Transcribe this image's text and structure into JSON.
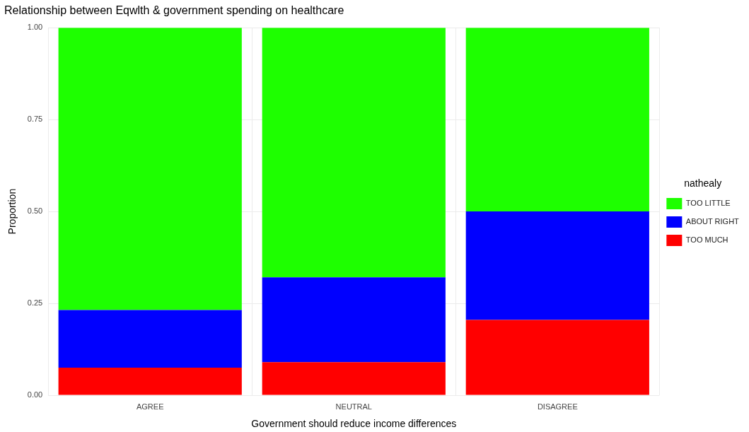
{
  "chart_data": {
    "type": "bar",
    "title": "Relationship between Eqwlth & government spending on healthcare",
    "xlabel": "Government should reduce income differences",
    "ylabel": "Proportion",
    "legend_title": "nathealy",
    "categories": [
      "AGREE",
      "NEUTRAL",
      "DISAGREE"
    ],
    "stacked": true,
    "series": [
      {
        "name": "TOO MUCH",
        "color": "#ff0000",
        "values": [
          0.075,
          0.09,
          0.205
        ]
      },
      {
        "name": "ABOUT RIGHT",
        "color": "#0000ff",
        "values": [
          0.157,
          0.231,
          0.295
        ]
      },
      {
        "name": "TOO LITTLE",
        "color": "#1eff00",
        "values": [
          0.768,
          0.679,
          0.5
        ]
      }
    ],
    "ylim": [
      0,
      1
    ],
    "yticks": [
      {
        "value": 0,
        "label": "0.00"
      },
      {
        "value": 0.25,
        "label": "0.25"
      },
      {
        "value": 0.5,
        "label": "0.50"
      },
      {
        "value": 0.75,
        "label": "0.75"
      },
      {
        "value": 1,
        "label": "1.00"
      }
    ],
    "grid": true,
    "legend": "right"
  }
}
